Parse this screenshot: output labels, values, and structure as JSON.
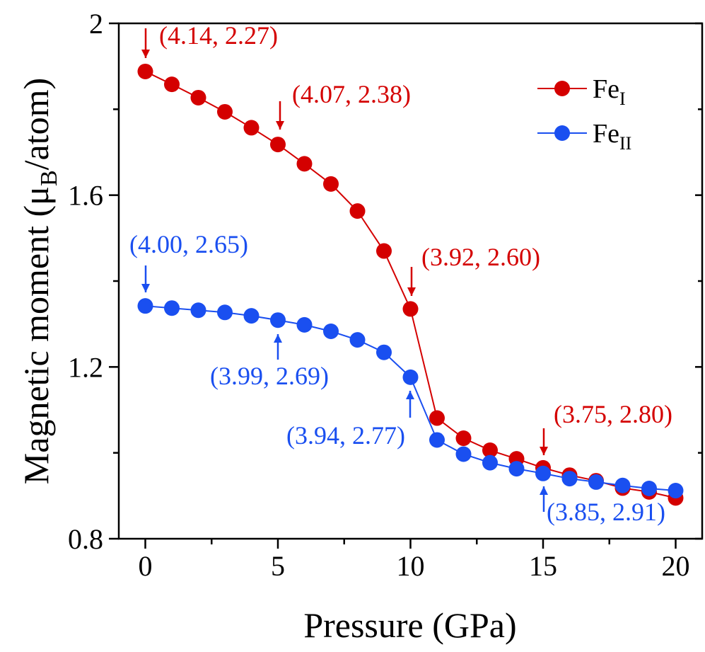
{
  "chart_data": {
    "type": "line",
    "x_label": "Pressure (GPa)",
    "y_label": {
      "text": "Magnetic moment (μ",
      "subscript": "B",
      "suffix": "/atom)"
    },
    "x": [
      0,
      1,
      2,
      3,
      4,
      5,
      6,
      7,
      8,
      9,
      10,
      11,
      12,
      13,
      14,
      15,
      16,
      17,
      18,
      19,
      20
    ],
    "series": [
      {
        "name": "Fe",
        "subscript": "I",
        "color": "#d40000",
        "values": [
          1.888,
          1.858,
          1.827,
          1.794,
          1.757,
          1.718,
          1.673,
          1.626,
          1.563,
          1.47,
          1.335,
          1.081,
          1.034,
          1.006,
          0.986,
          0.965,
          0.948,
          0.935,
          0.918,
          0.909,
          0.895
        ]
      },
      {
        "name": "Fe",
        "subscript": "II",
        "color": "#1a4ff0",
        "values": [
          1.342,
          1.337,
          1.332,
          1.327,
          1.319,
          1.309,
          1.298,
          1.283,
          1.263,
          1.234,
          1.176,
          1.03,
          0.997,
          0.977,
          0.963,
          0.952,
          0.94,
          0.932,
          0.924,
          0.917,
          0.912
        ]
      }
    ],
    "xlim": [
      -1,
      21
    ],
    "xticks": [
      0,
      5,
      10,
      15,
      20
    ],
    "xminor": [
      2.5,
      7.5,
      12.5,
      17.5
    ],
    "ylim": [
      0.8,
      2
    ],
    "yticks": [
      0.8,
      1.2,
      1.6,
      2
    ],
    "yminor": [
      1.0,
      1.4,
      1.8
    ],
    "annotations": [
      {
        "text": "(4.14, 2.27)",
        "color": "#d40000"
      },
      {
        "text": "(4.07, 2.38)",
        "color": "#d40000"
      },
      {
        "text": "(3.92, 2.60)",
        "color": "#d40000"
      },
      {
        "text": "(3.75, 2.80)",
        "color": "#d40000"
      },
      {
        "text": "(4.00, 2.65)",
        "color": "#1a4ff0"
      },
      {
        "text": "(3.99, 2.69)",
        "color": "#1a4ff0"
      },
      {
        "text": "(3.94, 2.77)",
        "color": "#1a4ff0"
      },
      {
        "text": "(3.85, 2.91)",
        "color": "#1a4ff0"
      }
    ]
  }
}
